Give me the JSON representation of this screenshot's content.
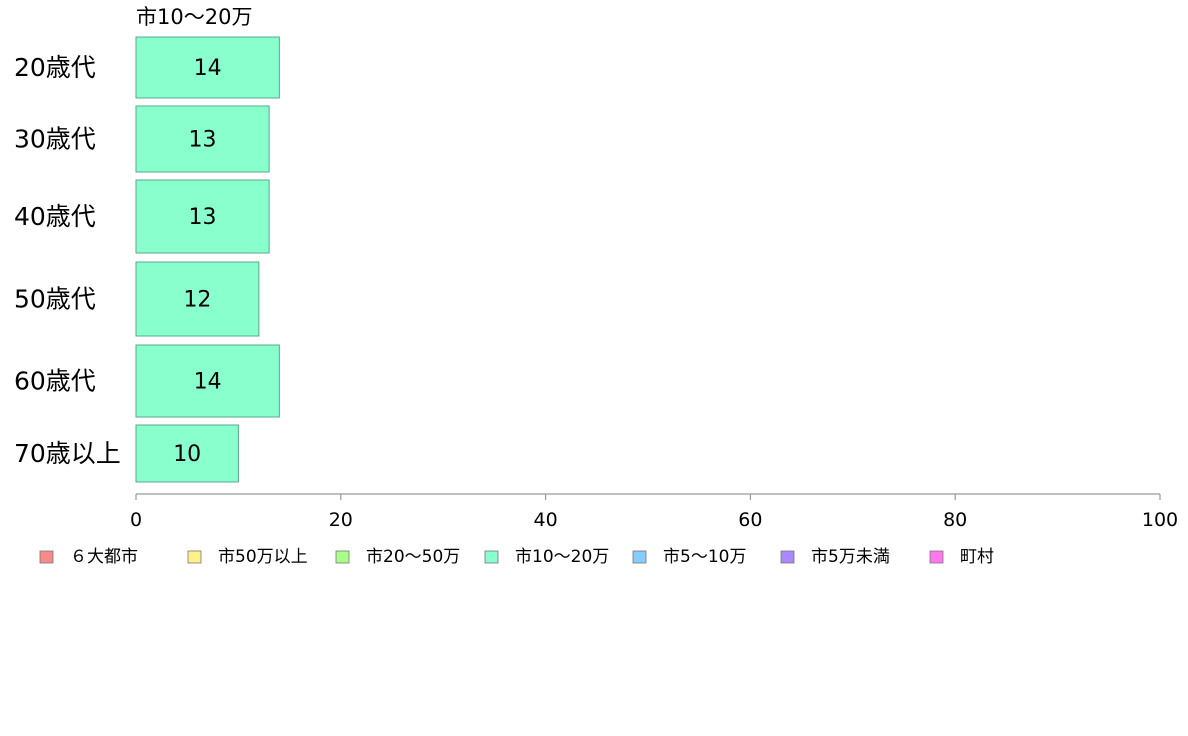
{
  "chart_data": {
    "type": "bar",
    "orientation": "horizontal",
    "series_title": "市10〜20万",
    "categories": [
      "20歳代",
      "30歳代",
      "40歳代",
      "50歳代",
      "60歳代",
      "70歳以上"
    ],
    "series": [
      {
        "name": "市10〜20万",
        "color": "#88ffcc",
        "values": [
          14,
          13,
          13,
          12,
          14,
          10
        ],
        "labels": [
          "14",
          "13",
          "13",
          "12",
          "14",
          "10"
        ]
      }
    ],
    "xlim": [
      0,
      100
    ],
    "xticks": [
      0,
      20,
      40,
      60,
      80,
      100
    ],
    "grid": false,
    "legend_position": "bottom",
    "legend": [
      {
        "label": "６大都市",
        "color": "#f98a8a"
      },
      {
        "label": "市50万以上",
        "color": "#fff08a"
      },
      {
        "label": "市20〜50万",
        "color": "#aaff88"
      },
      {
        "label": "市10〜20万",
        "color": "#88ffcc"
      },
      {
        "label": "市5〜10万",
        "color": "#88ccff"
      },
      {
        "label": "市5万未満",
        "color": "#aa88ff"
      },
      {
        "label": "町村",
        "color": "#ff77ee"
      }
    ]
  }
}
